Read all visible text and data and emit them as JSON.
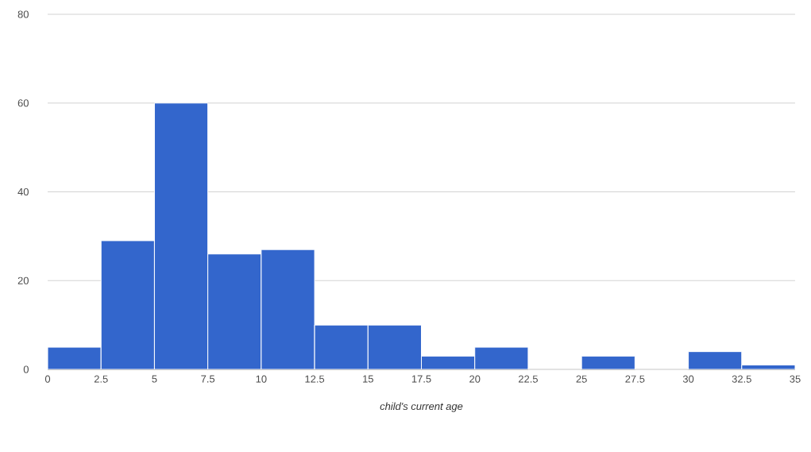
{
  "chart_data": {
    "type": "histogram",
    "xlabel": "child's current age",
    "bins": [
      0,
      2.5,
      5,
      7.5,
      10,
      12.5,
      15,
      17.5,
      20,
      22.5,
      25,
      27.5,
      30,
      32.5,
      35
    ],
    "values": [
      5,
      29,
      60,
      26,
      27,
      10,
      10,
      3,
      5,
      0,
      3,
      0,
      4,
      1
    ],
    "color": "#3366cc",
    "xlim": [
      0,
      35
    ],
    "xticks": [
      0,
      2.5,
      5,
      7.5,
      10,
      12.5,
      15,
      17.5,
      20,
      22.5,
      25,
      27.5,
      30,
      32.5,
      35
    ],
    "ylim": [
      0,
      80
    ],
    "yticks": [
      0,
      20,
      40,
      60,
      80
    ],
    "grid": "y"
  }
}
